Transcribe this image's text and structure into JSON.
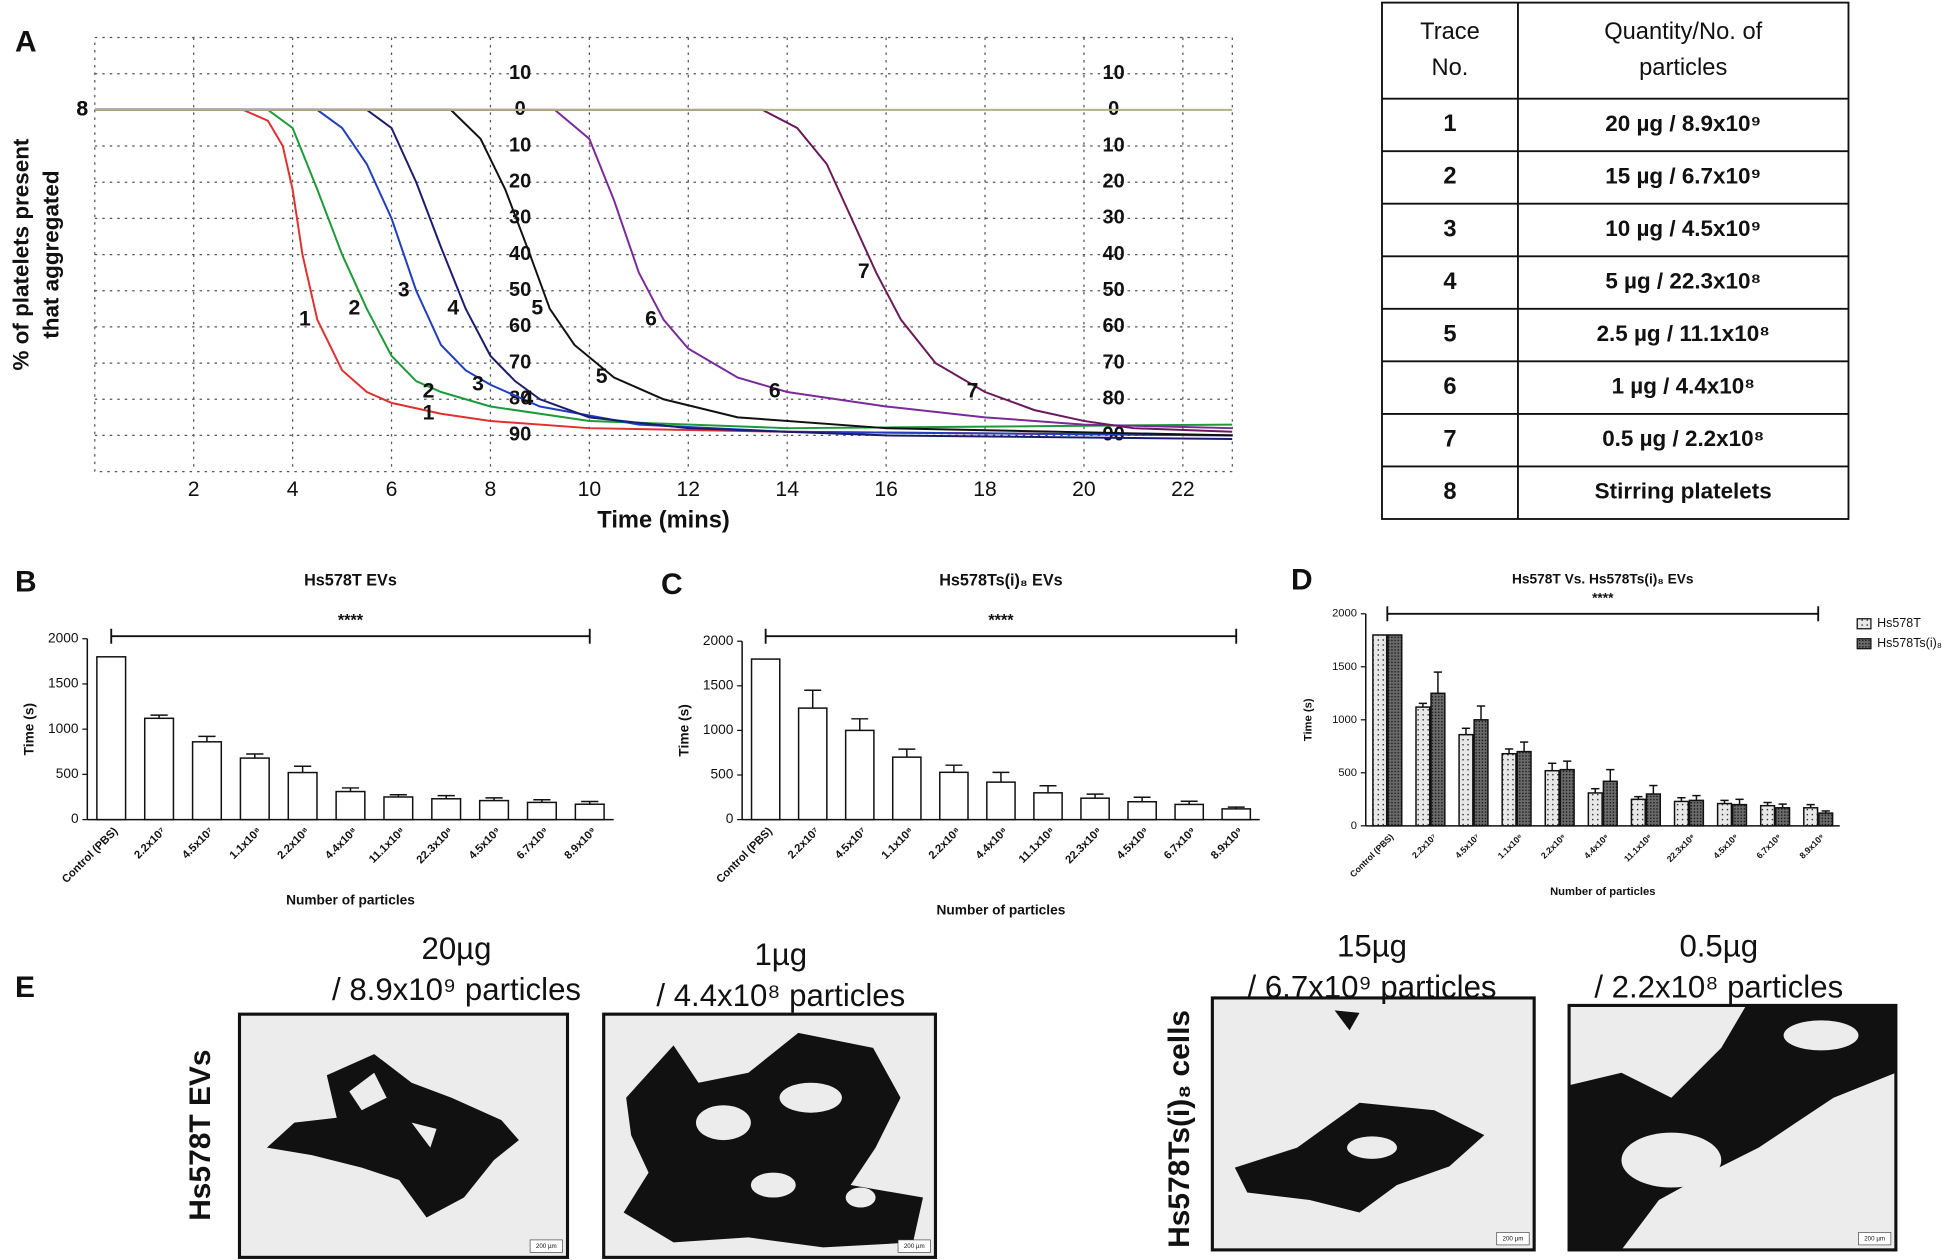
{
  "panel_labels": [
    "A",
    "B",
    "C",
    "D",
    "E"
  ],
  "chart_data": [
    {
      "type": "line",
      "ylabel": [
        "% of platelets present",
        "that aggregated"
      ],
      "xlabel": "Time (mins)",
      "xlim": [
        0,
        23
      ],
      "xticks": [
        2,
        4,
        6,
        8,
        10,
        12,
        14,
        16,
        18,
        20,
        22
      ],
      "ylim": [
        -20,
        100
      ],
      "y_inverted": true,
      "yticks": [
        {
          "value": -10,
          "label": "10"
        },
        0,
        10,
        20,
        30,
        40,
        50,
        60,
        70,
        80,
        90
      ],
      "grid": true,
      "series": [
        {
          "name": "1",
          "color": "#e03030",
          "x": [
            0,
            3,
            3.5,
            3.8,
            4,
            4.2,
            4.5,
            5,
            5.5,
            6,
            7,
            8,
            10,
            14,
            23
          ],
          "values": [
            0,
            0,
            3,
            10,
            22,
            40,
            58,
            72,
            78,
            81,
            84,
            86,
            88,
            89,
            90
          ]
        },
        {
          "name": "2",
          "color": "#1e9a3a",
          "x": [
            0,
            3.5,
            4,
            4.5,
            5,
            5.5,
            6,
            6.5,
            7,
            8,
            10,
            14,
            23
          ],
          "values": [
            0,
            0,
            5,
            22,
            40,
            55,
            68,
            75,
            78,
            82,
            86,
            88,
            87
          ]
        },
        {
          "name": "3",
          "color": "#1f3fbf",
          "x": [
            0,
            4.5,
            5,
            5.5,
            6,
            6.5,
            7,
            7.5,
            8,
            9,
            11,
            14,
            23
          ],
          "values": [
            0,
            0,
            5,
            15,
            30,
            50,
            65,
            72,
            76,
            82,
            87,
            89,
            90
          ]
        },
        {
          "name": "4",
          "color": "#1c1c6e",
          "x": [
            0,
            5.5,
            6,
            6.5,
            7,
            7.5,
            8,
            8.5,
            9,
            10,
            12,
            16,
            23
          ],
          "values": [
            0,
            0,
            5,
            20,
            38,
            55,
            68,
            75,
            80,
            85,
            88,
            90,
            91
          ]
        },
        {
          "name": "5",
          "color": "#111111",
          "x": [
            0,
            7.2,
            7.8,
            8.3,
            8.8,
            9.2,
            9.7,
            10.5,
            11.5,
            13,
            16,
            23
          ],
          "values": [
            0,
            0,
            8,
            22,
            40,
            55,
            65,
            74,
            80,
            85,
            88,
            90
          ]
        },
        {
          "name": "6",
          "color": "#7a2a9a",
          "x": [
            0,
            9.3,
            10,
            10.5,
            11,
            11.5,
            12,
            13,
            14,
            16,
            18,
            20,
            23
          ],
          "values": [
            0,
            0,
            8,
            25,
            45,
            58,
            66,
            74,
            78,
            82,
            85,
            87,
            88
          ]
        },
        {
          "name": "7",
          "color": "#6a1a5a",
          "x": [
            0,
            13.5,
            14.2,
            14.8,
            15.3,
            15.8,
            16.3,
            17,
            18,
            19,
            20,
            21,
            23
          ],
          "values": [
            0,
            0,
            5,
            15,
            30,
            45,
            58,
            70,
            78,
            83,
            86,
            88,
            89
          ]
        },
        {
          "name": "8",
          "color": "#b0b088",
          "x": [
            0,
            23
          ],
          "values": [
            0,
            0
          ]
        }
      ]
    },
    {
      "type": "bar",
      "title": "Hs578T EVs",
      "ylabel": "Time (s)",
      "xlabel": "Number of particles",
      "annotation": "****",
      "categories": [
        "Control (PBS)",
        "2.2x10⁷",
        "4.5x10⁷",
        "1.1x10⁸",
        "2.2x10⁸",
        "4.4x10⁸",
        "11.1x10⁸",
        "22.3x10⁸",
        "4.5x10⁹",
        "6.7x10⁹",
        "8.9x10⁹"
      ],
      "values": [
        1800,
        1120,
        860,
        680,
        520,
        310,
        250,
        230,
        210,
        190,
        170
      ],
      "errors": [
        0,
        35,
        60,
        45,
        70,
        40,
        25,
        35,
        30,
        30,
        30
      ],
      "color": "#ffffff",
      "ylim": [
        0,
        2000
      ],
      "yticks": [
        0,
        500,
        1000,
        1500,
        2000
      ]
    },
    {
      "type": "bar",
      "title": "Hs578Ts(i)₈ EVs",
      "ylabel": "Time (s)",
      "xlabel": "Number of particles",
      "annotation": "****",
      "categories": [
        "Control (PBS)",
        "2.2x10⁷",
        "4.5x10⁷",
        "1.1x10⁸",
        "2.2x10⁸",
        "4.4x10⁸",
        "11.1x10⁸",
        "22.3x10⁸",
        "4.5x10⁹",
        "6.7x10⁹",
        "8.9x10⁹"
      ],
      "values": [
        1800,
        1250,
        1000,
        700,
        530,
        420,
        300,
        240,
        200,
        170,
        120
      ],
      "errors": [
        0,
        200,
        130,
        90,
        80,
        110,
        80,
        45,
        50,
        35,
        20
      ],
      "color": "#ffffff",
      "ylim": [
        0,
        2000
      ],
      "yticks": [
        0,
        500,
        1000,
        1500,
        2000
      ]
    },
    {
      "type": "bar",
      "title": "Hs578T Vs. Hs578Ts(i)₈ EVs",
      "ylabel": "Time (s)",
      "xlabel": "Number of particles",
      "annotation": "****",
      "categories": [
        "Control (PBS)",
        "2.2x10⁷",
        "4.5x10⁷",
        "1.1x10⁸",
        "2.2x10⁸",
        "4.4x10⁸",
        "11.1x10⁸",
        "22.3x10⁸",
        "4.5x10⁹",
        "6.7x10⁹",
        "8.9x10⁹"
      ],
      "series": [
        {
          "name": "Hs578T",
          "color": "#e8e8e8",
          "values": [
            1800,
            1120,
            860,
            680,
            520,
            310,
            250,
            230,
            210,
            190,
            170
          ],
          "errors": [
            0,
            35,
            60,
            45,
            70,
            40,
            25,
            35,
            30,
            30,
            30
          ]
        },
        {
          "name": "Hs578Ts(i)₈",
          "color": "#6a6a6a",
          "values": [
            1800,
            1250,
            1000,
            700,
            530,
            420,
            300,
            240,
            200,
            170,
            120
          ],
          "errors": [
            0,
            200,
            130,
            90,
            80,
            110,
            80,
            45,
            50,
            35,
            20
          ]
        }
      ],
      "ylim": [
        0,
        2000
      ],
      "yticks": [
        0,
        500,
        1000,
        1500,
        2000
      ],
      "legend": "right"
    }
  ],
  "table": {
    "header": [
      [
        "Trace",
        "No."
      ],
      [
        "Quantity/No. of",
        "particles"
      ]
    ],
    "rows": [
      {
        "trace": "1",
        "quantity": "20 µg / 8.9x10⁹",
        "color": "#e8141c"
      },
      {
        "trace": "2",
        "quantity": "15 µg / 6.7x10⁹",
        "color": "#1aaa50"
      },
      {
        "trace": "3",
        "quantity": "10 µg / 4.5x10⁹",
        "color": "#1a78c8"
      },
      {
        "trace": "4",
        "quantity": "5 µg / 22.3x10⁸",
        "color": "#1a2a6a"
      },
      {
        "trace": "5",
        "quantity": "2.5 µg / 11.1x10⁸",
        "color": "#111111"
      },
      {
        "trace": "6",
        "quantity": "1 µg / 4.4x10⁸",
        "color": "#a020f0"
      },
      {
        "trace": "7",
        "quantity": "0.5 µg / 2.2x10⁸",
        "color": "#5a1a70"
      },
      {
        "trace": "8",
        "quantity": "Stirring platelets",
        "color": "#8cc850"
      }
    ]
  },
  "micrographs": {
    "captions": [
      [
        "20µg",
        "/ 8.9x10⁹  particles"
      ],
      [
        "1µg",
        "/ 4.4x10⁸ particles"
      ],
      [
        "15µg",
        "/ 6.7x10⁹ particles"
      ],
      [
        "0.5µg",
        "/ 2.2x10⁸ particles"
      ]
    ],
    "row_labels": [
      "Hs578T EVs",
      "Hs578Ts(i)₈ cells"
    ],
    "scale_bar": "200 µm"
  }
}
